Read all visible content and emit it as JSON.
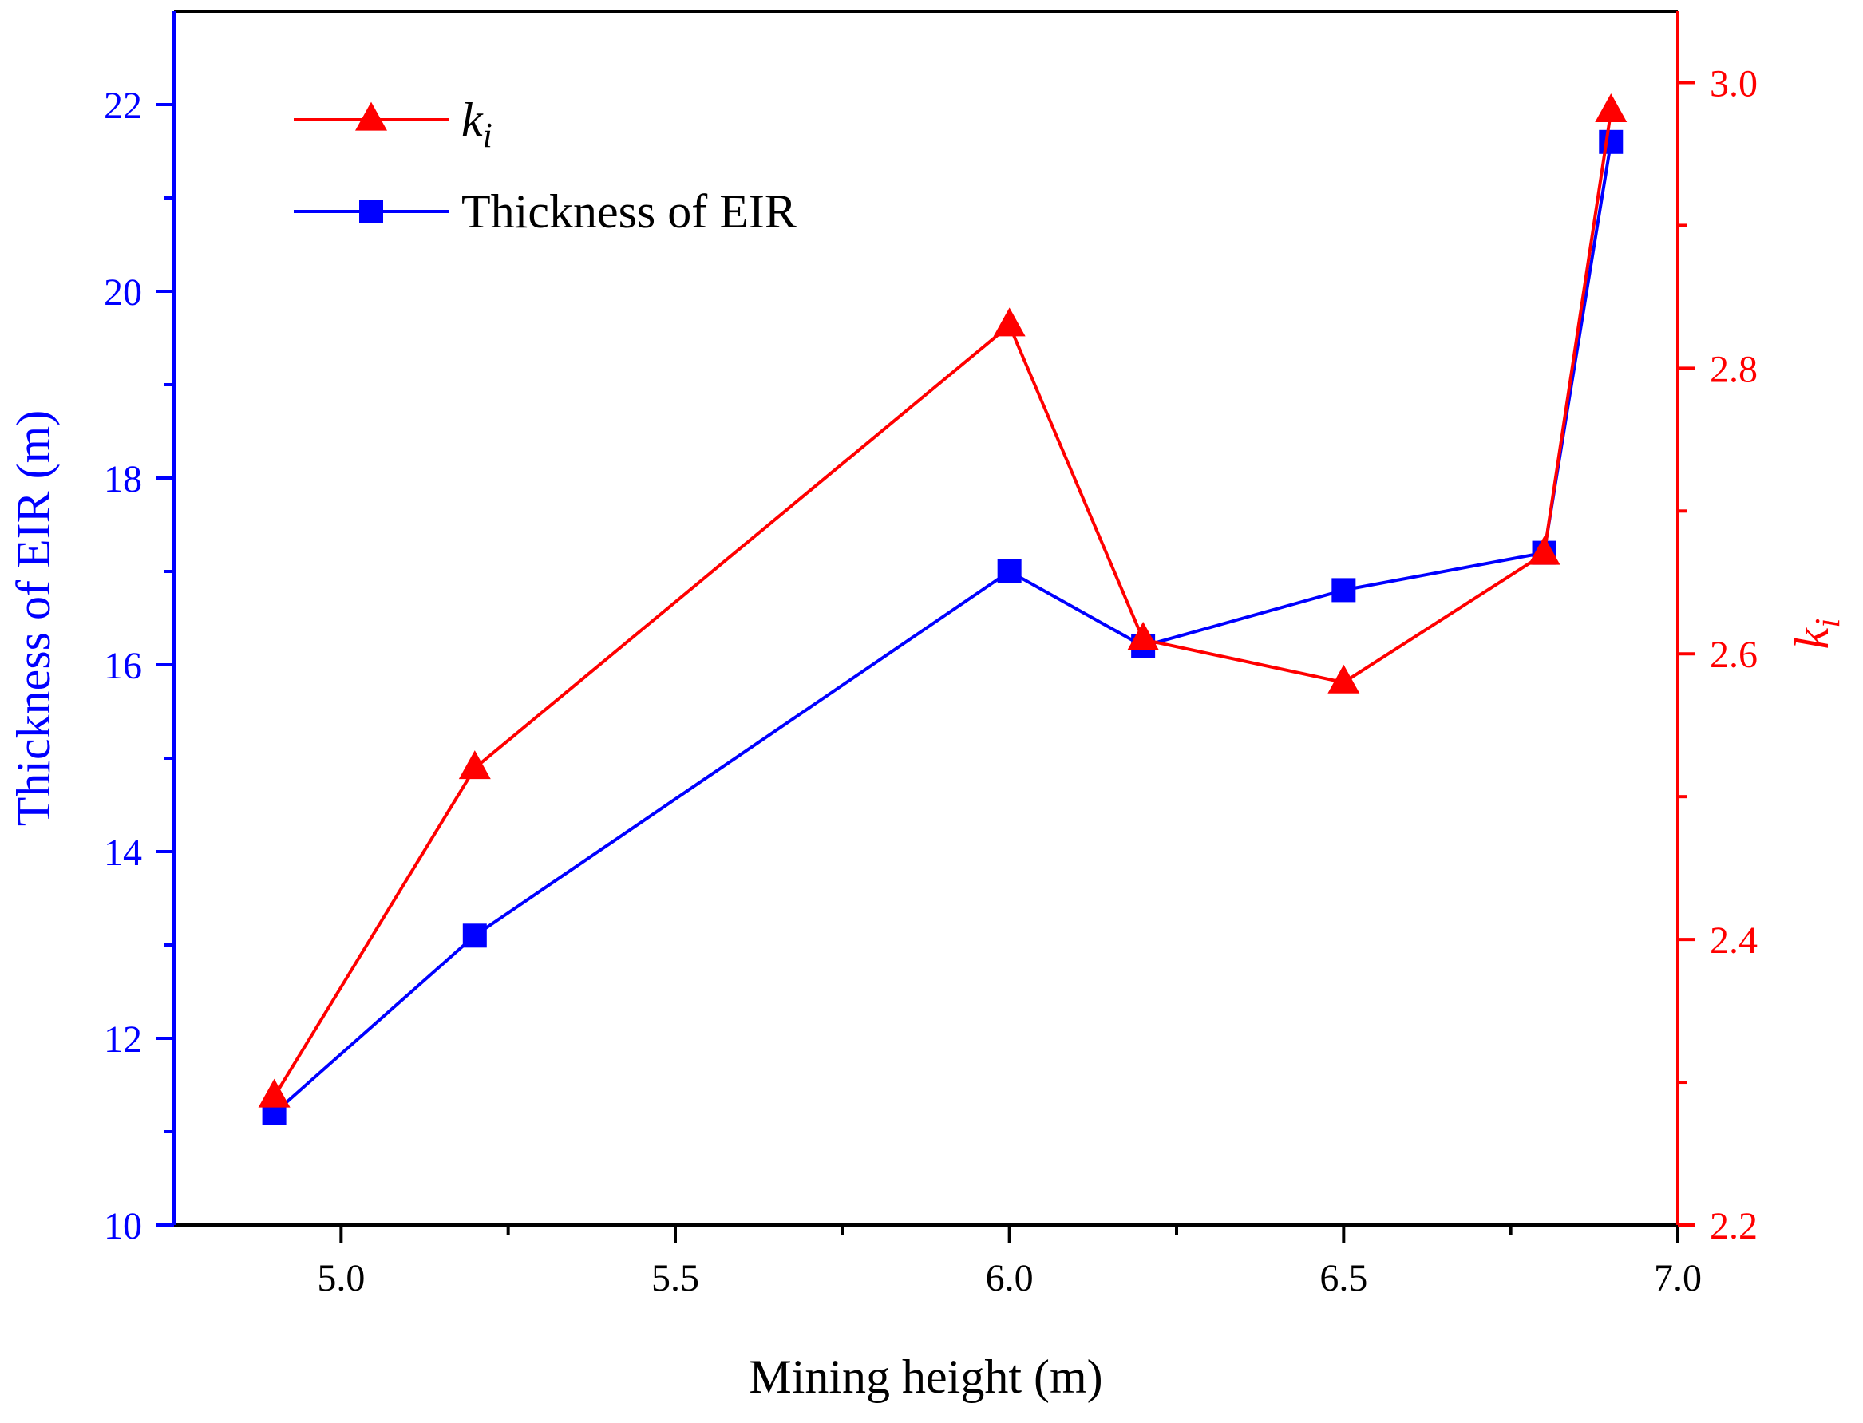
{
  "chart_data": {
    "type": "line",
    "x": [
      4.9,
      5.2,
      6.0,
      6.2,
      6.5,
      6.8,
      6.9
    ],
    "xlabel": "Mining height (m)",
    "ylabel_left": "Thickness of EIR (m)",
    "ylabel_right_base": "k",
    "ylabel_right_sub": "i",
    "xlim": [
      4.75,
      7.0
    ],
    "ylim_left": [
      10,
      23
    ],
    "ylim_right": [
      2.2,
      3.05
    ],
    "xticks": [
      5.0,
      5.5,
      6.0,
      6.5,
      7.0
    ],
    "xtick_labels": [
      "5.0",
      "5.5",
      "6.0",
      "6.5",
      "7.0"
    ],
    "yticks_left": [
      10,
      12,
      14,
      16,
      18,
      20,
      22
    ],
    "ytick_labels_left": [
      "10",
      "12",
      "14",
      "16",
      "18",
      "20",
      "22"
    ],
    "yticks_right": [
      2.2,
      2.4,
      2.6,
      2.8,
      3.0
    ],
    "ytick_labels_right": [
      "2.2",
      "2.4",
      "2.6",
      "2.8",
      "3.0"
    ],
    "grid": false,
    "legend_position": "top-left",
    "series": [
      {
        "name_base": "k",
        "name_sub": "i",
        "axis": "right",
        "marker": "triangle",
        "color": "#ff0000",
        "values": [
          2.29,
          2.52,
          2.83,
          2.61,
          2.58,
          2.67,
          2.98
        ]
      },
      {
        "name": "Thickness of EIR",
        "axis": "left",
        "marker": "square",
        "color": "#0000ff",
        "values": [
          11.2,
          13.1,
          17.0,
          16.2,
          16.8,
          17.2,
          21.6
        ]
      }
    ],
    "colors": {
      "left_axis": "#0000ff",
      "right_axis": "#ff0000",
      "bottom_axis": "#000000"
    }
  }
}
